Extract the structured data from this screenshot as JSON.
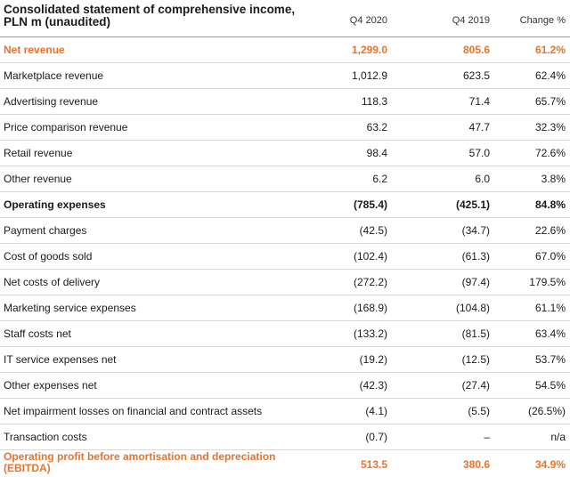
{
  "title_line1": "Consolidated statement of comprehensive income,",
  "title_line2": "PLN m (unaudited)",
  "columns": [
    "Q4 2020",
    "Q4 2019",
    "Change %"
  ],
  "rows": [
    {
      "label": "Net revenue",
      "q4_2020": "1,299.0",
      "q4_2019": "805.6",
      "change": "61.2%"
    },
    {
      "label": "Marketplace revenue",
      "q4_2020": "1,012.9",
      "q4_2019": "623.5",
      "change": "62.4%"
    },
    {
      "label": "Advertising revenue",
      "q4_2020": "118.3",
      "q4_2019": "71.4",
      "change": "65.7%"
    },
    {
      "label": "Price comparison revenue",
      "q4_2020": "63.2",
      "q4_2019": "47.7",
      "change": "32.3%"
    },
    {
      "label": "Retail revenue",
      "q4_2020": "98.4",
      "q4_2019": "57.0",
      "change": "72.6%"
    },
    {
      "label": "Other revenue",
      "q4_2020": "6.2",
      "q4_2019": "6.0",
      "change": "3.8%"
    },
    {
      "label": "Operating expenses",
      "q4_2020": "(785.4)",
      "q4_2019": "(425.1)",
      "change": "84.8%"
    },
    {
      "label": "Payment charges",
      "q4_2020": "(42.5)",
      "q4_2019": "(34.7)",
      "change": "22.6%"
    },
    {
      "label": "Cost of goods sold",
      "q4_2020": "(102.4)",
      "q4_2019": "(61.3)",
      "change": "67.0%"
    },
    {
      "label": "Net costs of delivery",
      "q4_2020": "(272.2)",
      "q4_2019": "(97.4)",
      "change": "179.5%"
    },
    {
      "label": "Marketing service expenses",
      "q4_2020": "(168.9)",
      "q4_2019": "(104.8)",
      "change": "61.1%"
    },
    {
      "label": "Staff costs net",
      "q4_2020": "(133.2)",
      "q4_2019": "(81.5)",
      "change": "63.4%"
    },
    {
      "label": "IT service expenses net",
      "q4_2020": "(19.2)",
      "q4_2019": "(12.5)",
      "change": "53.7%"
    },
    {
      "label": "Other expenses net",
      "q4_2020": "(42.3)",
      "q4_2019": "(27.4)",
      "change": "54.5%"
    },
    {
      "label": "Net impairment losses on financial and contract assets",
      "q4_2020": "(4.1)",
      "q4_2019": "(5.5)",
      "change": "(26.5%)"
    },
    {
      "label": "Transaction costs",
      "q4_2020": "(0.7)",
      "q4_2019": "–",
      "change": "n/a"
    }
  ],
  "ebitda": {
    "label_line1": "Operating profit before amortisation and depreciation",
    "label_line2": "(EBITDA)",
    "q4_2020": "513.5",
    "q4_2019": "380.6",
    "change": "34.9%"
  },
  "colors": {
    "accent": "#e8732a",
    "rule": "#d9d9d9"
  }
}
